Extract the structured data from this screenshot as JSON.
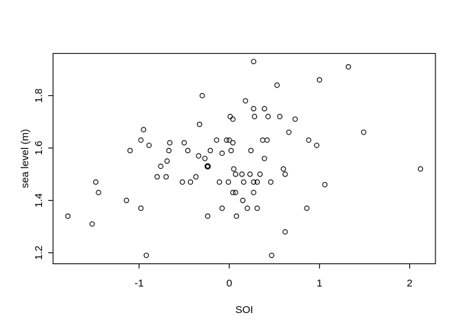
{
  "figure": {
    "kind": "r-base-graphics-scatterplot",
    "background": "#ffffff",
    "foreground": "#000000"
  },
  "chart_data": {
    "type": "scatter",
    "title": "",
    "xlabel": "SOI",
    "ylabel": "sea level (m)",
    "xlim": [
      -1.954,
      2.286
    ],
    "ylim": [
      1.158,
      1.961
    ],
    "x_ticks": [
      "-1",
      "0",
      "1",
      "2"
    ],
    "x_tick_values": [
      -1,
      0,
      1,
      2
    ],
    "y_ticks": [
      "1.2",
      "1.4",
      "1.6",
      "1.8"
    ],
    "y_tick_values": [
      1.2,
      1.4,
      1.6,
      1.8
    ],
    "grid": false,
    "legend": null,
    "marker": "open-circle",
    "marker_color": "#000000",
    "points": [
      {
        "x": 0.27,
        "y": 1.93
      },
      {
        "x": 1.32,
        "y": 1.91
      },
      {
        "x": 1.0,
        "y": 1.86
      },
      {
        "x": 0.53,
        "y": 1.84
      },
      {
        "x": -0.3,
        "y": 1.8
      },
      {
        "x": 0.18,
        "y": 1.78
      },
      {
        "x": 0.27,
        "y": 1.75
      },
      {
        "x": 0.39,
        "y": 1.75
      },
      {
        "x": 0.28,
        "y": 1.72
      },
      {
        "x": 0.43,
        "y": 1.72
      },
      {
        "x": 0.56,
        "y": 1.72
      },
      {
        "x": 0.01,
        "y": 1.72
      },
      {
        "x": 0.73,
        "y": 1.71
      },
      {
        "x": 0.04,
        "y": 1.71
      },
      {
        "x": -0.33,
        "y": 1.69
      },
      {
        "x": -0.95,
        "y": 1.67
      },
      {
        "x": 0.66,
        "y": 1.66
      },
      {
        "x": 1.49,
        "y": 1.66
      },
      {
        "x": -0.98,
        "y": 1.63
      },
      {
        "x": -0.5,
        "y": 1.62
      },
      {
        "x": -0.66,
        "y": 1.62
      },
      {
        "x": -0.14,
        "y": 1.63
      },
      {
        "x": -0.03,
        "y": 1.63
      },
      {
        "x": 0.0,
        "y": 1.63
      },
      {
        "x": 0.37,
        "y": 1.63
      },
      {
        "x": 0.42,
        "y": 1.63
      },
      {
        "x": 0.88,
        "y": 1.63
      },
      {
        "x": 0.04,
        "y": 1.62
      },
      {
        "x": -0.89,
        "y": 1.61
      },
      {
        "x": 0.97,
        "y": 1.61
      },
      {
        "x": -1.1,
        "y": 1.59
      },
      {
        "x": -0.67,
        "y": 1.59
      },
      {
        "x": -0.46,
        "y": 1.59
      },
      {
        "x": -0.21,
        "y": 1.59
      },
      {
        "x": 0.02,
        "y": 1.59
      },
      {
        "x": 0.24,
        "y": 1.59
      },
      {
        "x": -0.08,
        "y": 1.58
      },
      {
        "x": -0.34,
        "y": 1.57
      },
      {
        "x": -0.27,
        "y": 1.56
      },
      {
        "x": 0.39,
        "y": 1.56
      },
      {
        "x": -0.69,
        "y": 1.55
      },
      {
        "x": -0.76,
        "y": 1.53
      },
      {
        "x": -0.24,
        "y": 1.53,
        "bold": true
      },
      {
        "x": 0.05,
        "y": 1.52
      },
      {
        "x": 0.6,
        "y": 1.52
      },
      {
        "x": 2.12,
        "y": 1.52
      },
      {
        "x": 0.62,
        "y": 1.5
      },
      {
        "x": 0.07,
        "y": 1.5
      },
      {
        "x": 0.14,
        "y": 1.5
      },
      {
        "x": 0.23,
        "y": 1.5
      },
      {
        "x": 0.34,
        "y": 1.5
      },
      {
        "x": -0.8,
        "y": 1.49
      },
      {
        "x": -0.7,
        "y": 1.49
      },
      {
        "x": -0.37,
        "y": 1.49
      },
      {
        "x": -1.48,
        "y": 1.47
      },
      {
        "x": -0.52,
        "y": 1.47
      },
      {
        "x": -0.43,
        "y": 1.47
      },
      {
        "x": -0.11,
        "y": 1.47
      },
      {
        "x": -0.01,
        "y": 1.47
      },
      {
        "x": 0.16,
        "y": 1.47
      },
      {
        "x": 0.27,
        "y": 1.47
      },
      {
        "x": 0.31,
        "y": 1.47
      },
      {
        "x": 0.46,
        "y": 1.47
      },
      {
        "x": 1.06,
        "y": 1.46
      },
      {
        "x": -1.45,
        "y": 1.43
      },
      {
        "x": 0.04,
        "y": 1.43
      },
      {
        "x": 0.07,
        "y": 1.43
      },
      {
        "x": 0.27,
        "y": 1.43
      },
      {
        "x": -1.14,
        "y": 1.4
      },
      {
        "x": 0.15,
        "y": 1.4
      },
      {
        "x": -0.98,
        "y": 1.37
      },
      {
        "x": -0.08,
        "y": 1.37
      },
      {
        "x": 0.2,
        "y": 1.37
      },
      {
        "x": 0.31,
        "y": 1.37
      },
      {
        "x": 0.86,
        "y": 1.37
      },
      {
        "x": -1.79,
        "y": 1.34
      },
      {
        "x": -0.24,
        "y": 1.34
      },
      {
        "x": 0.08,
        "y": 1.34
      },
      {
        "x": -1.52,
        "y": 1.31
      },
      {
        "x": 0.62,
        "y": 1.28
      },
      {
        "x": -0.92,
        "y": 1.19
      },
      {
        "x": 0.47,
        "y": 1.19
      }
    ]
  }
}
